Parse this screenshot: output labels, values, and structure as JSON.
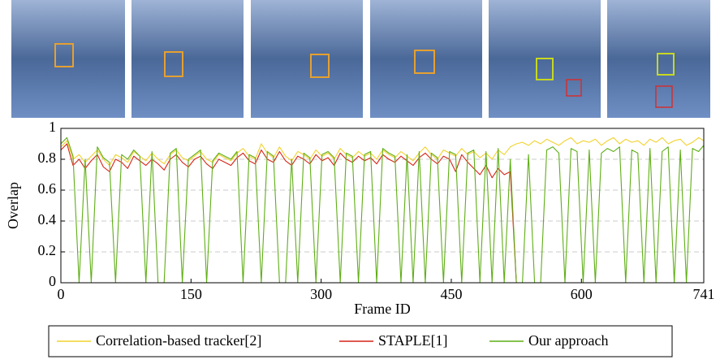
{
  "chart_data": {
    "type": "line",
    "ylabel": "Overlap",
    "xlabel": "Frame ID",
    "xlim": [
      0,
      741
    ],
    "xticks": [
      0,
      150,
      300,
      450,
      600,
      741
    ],
    "ylim": [
      0,
      1
    ],
    "yticks": [
      0,
      0.2,
      0.4,
      0.6,
      0.8,
      1
    ],
    "grid": true,
    "legend": "bottom",
    "x": [
      0,
      7,
      14,
      21,
      28,
      35,
      42,
      49,
      56,
      63,
      70,
      77,
      84,
      91,
      98,
      105,
      112,
      119,
      126,
      133,
      140,
      147,
      154,
      161,
      168,
      175,
      182,
      189,
      196,
      203,
      210,
      217,
      224,
      231,
      238,
      245,
      252,
      259,
      266,
      273,
      280,
      287,
      294,
      301,
      308,
      315,
      322,
      329,
      336,
      343,
      350,
      357,
      364,
      371,
      378,
      385,
      392,
      399,
      406,
      413,
      420,
      427,
      434,
      441,
      448,
      455,
      462,
      469,
      476,
      483,
      490,
      497,
      504,
      511,
      518,
      525,
      532,
      539,
      546,
      553,
      560,
      567,
      574,
      581,
      588,
      595,
      602,
      609,
      616,
      623,
      630,
      637,
      644,
      651,
      658,
      665,
      672,
      679,
      686,
      693,
      700,
      707,
      714,
      721,
      728,
      735,
      741
    ],
    "series": [
      {
        "name": "Correlation-based tracker[2]",
        "color": "#f2d22e",
        "values": [
          0.88,
          0.92,
          0.8,
          0.83,
          0.78,
          0.82,
          0.86,
          0.8,
          0.76,
          0.83,
          0.81,
          0.78,
          0.85,
          0.82,
          0.79,
          0.84,
          0.8,
          0.77,
          0.83,
          0.86,
          0.81,
          0.79,
          0.82,
          0.85,
          0.8,
          0.78,
          0.83,
          0.81,
          0.79,
          0.84,
          0.87,
          0.82,
          0.8,
          0.9,
          0.84,
          0.81,
          0.88,
          0.82,
          0.79,
          0.85,
          0.83,
          0.8,
          0.86,
          0.82,
          0.84,
          0.8,
          0.87,
          0.83,
          0.81,
          0.85,
          0.82,
          0.84,
          0.8,
          0.86,
          0.83,
          0.81,
          0.85,
          0.82,
          0.79,
          0.84,
          0.88,
          0.83,
          0.8,
          0.86,
          0.84,
          0.82,
          0.87,
          0.83,
          0.85,
          0.81,
          0.84,
          0.8,
          0.86,
          0.83,
          0.88,
          0.9,
          0.91,
          0.89,
          0.92,
          0.9,
          0.93,
          0.91,
          0.89,
          0.92,
          0.94,
          0.9,
          0.92,
          0.91,
          0.93,
          0.89,
          0.92,
          0.94,
          0.9,
          0.93,
          0.91,
          0.92,
          0.89,
          0.93,
          0.91,
          0.94,
          0.9,
          0.92,
          0.93,
          0.89,
          0.91,
          0.94,
          0.92
        ]
      },
      {
        "name": "STAPLE[1]",
        "color": "#d62418",
        "values": [
          0.86,
          0.9,
          0.76,
          0.8,
          0.74,
          0.79,
          0.83,
          0.75,
          0.72,
          0.8,
          0.78,
          0.74,
          0.82,
          0.79,
          0.76,
          0.8,
          0.77,
          0.73,
          0.8,
          0.83,
          0.78,
          0.75,
          0.8,
          0.82,
          0.77,
          0.74,
          0.8,
          0.78,
          0.76,
          0.81,
          0.84,
          0.79,
          0.77,
          0.86,
          0.8,
          0.78,
          0.85,
          0.79,
          0.76,
          0.82,
          0.8,
          0.77,
          0.83,
          0.79,
          0.81,
          0.76,
          0.84,
          0.8,
          0.78,
          0.82,
          0.79,
          0.81,
          0.77,
          0.83,
          0.8,
          0.78,
          0.82,
          0.79,
          0.76,
          0.81,
          0.84,
          0.8,
          0.77,
          0.82,
          0.8,
          0.72,
          0.83,
          0.78,
          0.74,
          0.7,
          0.76,
          0.68,
          0.74,
          0.7,
          0.72,
          0,
          0,
          0,
          0,
          0,
          0,
          0,
          0,
          0,
          0,
          0,
          0,
          0,
          0,
          0,
          0,
          0,
          0,
          0,
          0,
          0,
          0,
          0,
          0,
          0,
          0,
          0,
          0,
          0,
          0,
          0,
          0
        ]
      },
      {
        "name": "Our approach",
        "color": "#5fae16",
        "values": [
          0.9,
          0.94,
          0.82,
          0,
          0.8,
          0,
          0.88,
          0.81,
          0.78,
          0,
          0.83,
          0.8,
          0.86,
          0.82,
          0,
          0.85,
          0,
          0,
          0.84,
          0.87,
          0,
          0.8,
          0.83,
          0.86,
          0,
          0.79,
          0.84,
          0.82,
          0.8,
          0.85,
          0,
          0.83,
          0.81,
          0,
          0.85,
          0.82,
          0,
          0,
          0.8,
          0,
          0.84,
          0.81,
          0,
          0.83,
          0.85,
          0.81,
          0,
          0.84,
          0.82,
          0,
          0.83,
          0.85,
          0,
          0.87,
          0.84,
          0.82,
          0,
          0.83,
          0,
          0.85,
          0,
          0.84,
          0.81,
          0,
          0.85,
          0.83,
          0,
          0.84,
          0.86,
          0,
          0.85,
          0,
          0.87,
          0,
          0.8,
          0,
          0,
          0.83,
          0,
          0,
          0.86,
          0.88,
          0.84,
          0,
          0.87,
          0.85,
          0,
          0.86,
          0,
          0.84,
          0.87,
          0.85,
          0.88,
          0,
          0.86,
          0.84,
          0,
          0.87,
          0,
          0.85,
          0.88,
          0,
          0.86,
          0,
          0.87,
          0.85,
          0.89
        ]
      }
    ]
  }
}
